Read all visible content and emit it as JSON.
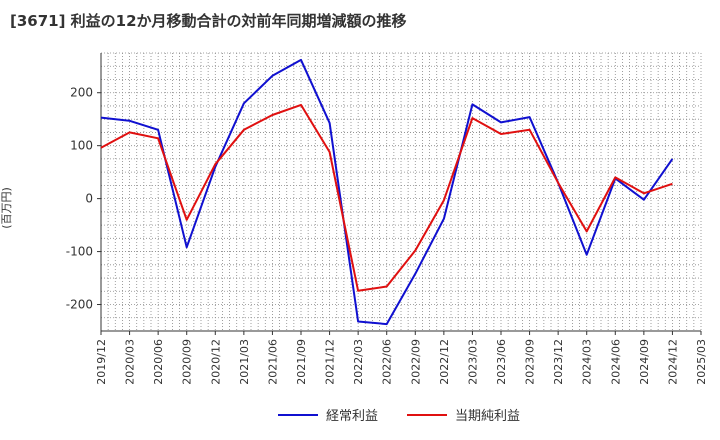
{
  "chart_data": {
    "type": "line",
    "title": "[3671]  利益の12か月移動合計の対前年同期増減額の推移",
    "xlabel": "",
    "ylabel": "(百万円)",
    "ylim": [
      -250,
      275
    ],
    "yticks": [
      -200,
      -100,
      0,
      100,
      200
    ],
    "categories": [
      "2019/12",
      "2020/03",
      "2020/06",
      "2020/09",
      "2020/12",
      "2021/03",
      "2021/06",
      "2021/09",
      "2021/12",
      "2022/03",
      "2022/06",
      "2022/09",
      "2022/12",
      "2023/03",
      "2023/06",
      "2023/09",
      "2023/12",
      "2024/03",
      "2024/06",
      "2024/09",
      "2024/12",
      "2025/03"
    ],
    "grid": true,
    "legend_position": "bottom",
    "series": [
      {
        "name": "経常利益",
        "color": "#1010d0",
        "values": [
          153,
          147,
          130,
          -92,
          60,
          180,
          232,
          262,
          143,
          -232,
          -237,
          -142,
          -38,
          178,
          144,
          154,
          30,
          -106,
          38,
          -2,
          75,
          null
        ]
      },
      {
        "name": "当期純利益",
        "color": "#e01010",
        "values": [
          96,
          125,
          114,
          -40,
          65,
          130,
          158,
          177,
          88,
          -174,
          -166,
          -98,
          -3,
          152,
          122,
          130,
          30,
          -62,
          40,
          10,
          28,
          null
        ]
      }
    ]
  }
}
